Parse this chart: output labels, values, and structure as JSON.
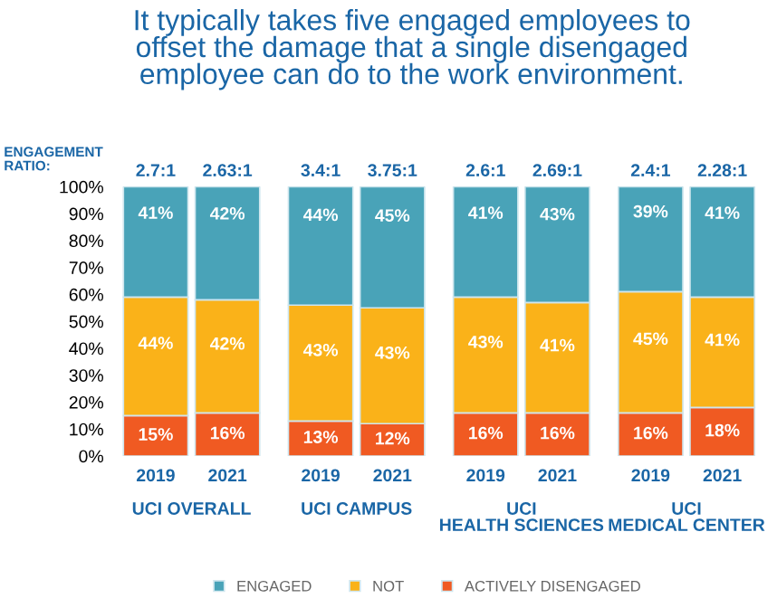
{
  "chart_data": {
    "type": "bar",
    "stacked": true,
    "title": "It typically takes five engaged employees to\noffset the damage that a single disengaged\nemployee can do to the work environment.",
    "categories": [
      "2019",
      "2021",
      "2019",
      "2021",
      "2019",
      "2021",
      "2019",
      "2021"
    ],
    "series": [
      {
        "name": "ACTIVELY DISENGAGED",
        "color": "#f05a22",
        "values": [
          15,
          16,
          13,
          12,
          16,
          16,
          16,
          18
        ],
        "value_labels": [
          "15%",
          "16%",
          "13%",
          "12%",
          "16%",
          "16%",
          "16%",
          "18%"
        ]
      },
      {
        "name": "NOT",
        "color": "#fab219",
        "values": [
          44,
          42,
          43,
          43,
          43,
          41,
          45,
          41
        ],
        "value_labels": [
          "44%",
          "42%",
          "43%",
          "43%",
          "43%",
          "41%",
          "45%",
          "41%"
        ]
      },
      {
        "name": "ENGAGED",
        "color": "#49a3b8",
        "values": [
          41,
          42,
          44,
          45,
          41,
          43,
          39,
          41
        ],
        "value_labels": [
          "41%",
          "42%",
          "44%",
          "45%",
          "41%",
          "43%",
          "39%",
          "41%"
        ]
      }
    ],
    "ylim": [
      0,
      100
    ],
    "yticks": [
      {
        "value": 0,
        "label": "0%"
      },
      {
        "value": 10,
        "label": "10%"
      },
      {
        "value": 20,
        "label": "20%"
      },
      {
        "value": 30,
        "label": "30%"
      },
      {
        "value": 40,
        "label": "40%"
      },
      {
        "value": 50,
        "label": "50%"
      },
      {
        "value": 60,
        "label": "60%"
      },
      {
        "value": 70,
        "label": "70%"
      },
      {
        "value": 80,
        "label": "80%"
      },
      {
        "value": 90,
        "label": "90%"
      },
      {
        "value": 100,
        "label": "100%"
      }
    ],
    "annotations": [
      "ENGAGEMENT\nRATIO:",
      "2.7:1",
      "2.63:1",
      "3.4:1",
      "3.75:1",
      "2.6:1",
      "2.69:1",
      "2.4:1",
      "2.28:1",
      "UCI OVERALL",
      "UCI CAMPUS",
      "UCI\nHEALTH SCIENCES",
      "UCI\nMEDICAL CENTER"
    ],
    "legend": "bottom",
    "grid": false
  }
}
